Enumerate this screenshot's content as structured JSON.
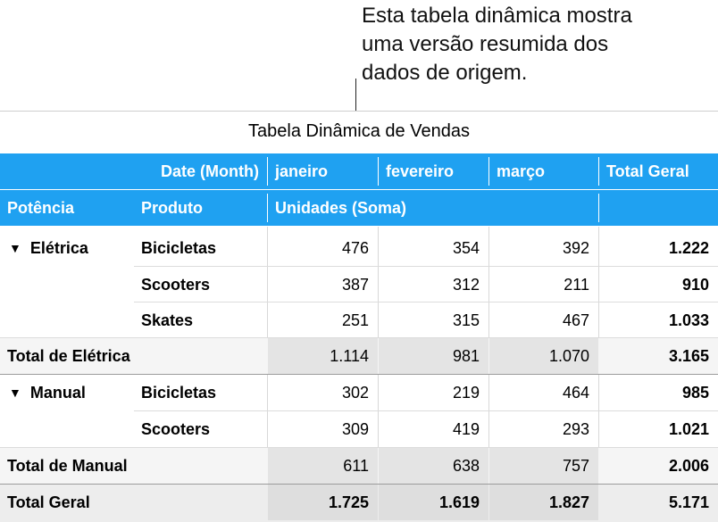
{
  "callout": {
    "lines": [
      "Esta tabela dinâmica mostra",
      "uma versão resumida dos",
      "dados de origem."
    ]
  },
  "table": {
    "title": "Tabela Dinâmica de Vendas",
    "header1": {
      "date_label": "Date (Month)",
      "months": [
        "janeiro",
        "fevereiro",
        "março"
      ],
      "total": "Total Geral"
    },
    "header2": {
      "col1": "Potência",
      "col2": "Produto",
      "values": "Unidades (Soma)"
    },
    "groups": [
      {
        "name": "Elétrica",
        "rows": [
          {
            "product": "Bicicletas",
            "values": [
              "476",
              "354",
              "392"
            ],
            "total": "1.222"
          },
          {
            "product": "Scooters",
            "values": [
              "387",
              "312",
              "211"
            ],
            "total": "910"
          },
          {
            "product": "Skates",
            "values": [
              "251",
              "315",
              "467"
            ],
            "total": "1.033"
          }
        ],
        "subtotal": {
          "label": "Total de Elétrica",
          "values": [
            "1.114",
            "981",
            "1.070"
          ],
          "total": "3.165"
        }
      },
      {
        "name": "Manual",
        "rows": [
          {
            "product": "Bicicletas",
            "values": [
              "302",
              "219",
              "464"
            ],
            "total": "985"
          },
          {
            "product": "Scooters",
            "values": [
              "309",
              "419",
              "293"
            ],
            "total": "1.021"
          }
        ],
        "subtotal": {
          "label": "Total de Manual",
          "values": [
            "611",
            "638",
            "757"
          ],
          "total": "2.006"
        }
      }
    ],
    "grand_total": {
      "label": "Total Geral",
      "values": [
        "1.725",
        "1.619",
        "1.827"
      ],
      "total": "5.171"
    },
    "expand_glyph": "▼"
  },
  "colors": {
    "header_bg": "#1fa1f1",
    "header_text": "#ffffff",
    "subtotal_bg": "#e4e4e4",
    "grand_total_bg": "#dedede"
  }
}
